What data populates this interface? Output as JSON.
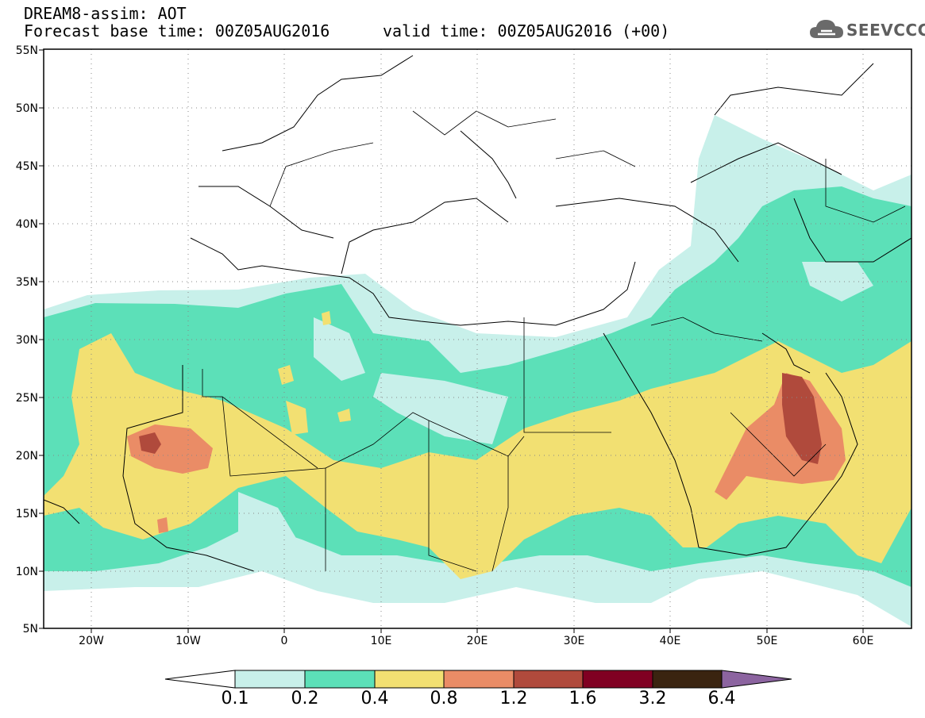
{
  "header": {
    "title": "DREAM8-assim: AOT",
    "base_time": "Forecast base time: 00Z05AUG2016",
    "valid_time": "valid time: 00Z05AUG2016 (+00)"
  },
  "logo": {
    "text": "SEEVCCC",
    "icon": "cloud-logo-icon"
  },
  "map": {
    "y_ticks": [
      "55N",
      "50N",
      "45N",
      "40N",
      "35N",
      "30N",
      "25N",
      "20N",
      "15N",
      "10N",
      "5N"
    ],
    "x_ticks": [
      "20W",
      "10W",
      "0",
      "10E",
      "20E",
      "30E",
      "40E",
      "50E",
      "60E"
    ],
    "grid": true
  },
  "colorbar": {
    "labels": [
      "0.1",
      "0.2",
      "0.4",
      "0.8",
      "1.2",
      "1.6",
      "3.2",
      "6.4"
    ],
    "colors": [
      "#ffffff",
      "#c8f0ea",
      "#5ce0b8",
      "#f2e072",
      "#ea8c66",
      "#b04a3c",
      "#800022",
      "#3a2410",
      "#8c64a0"
    ]
  },
  "colors": {
    "land": "#ffffff",
    "c01": "#c8f0ea",
    "c02": "#5ce0b8",
    "c04": "#f2e072",
    "c08": "#ea8c66",
    "c12": "#b04a3c"
  }
}
